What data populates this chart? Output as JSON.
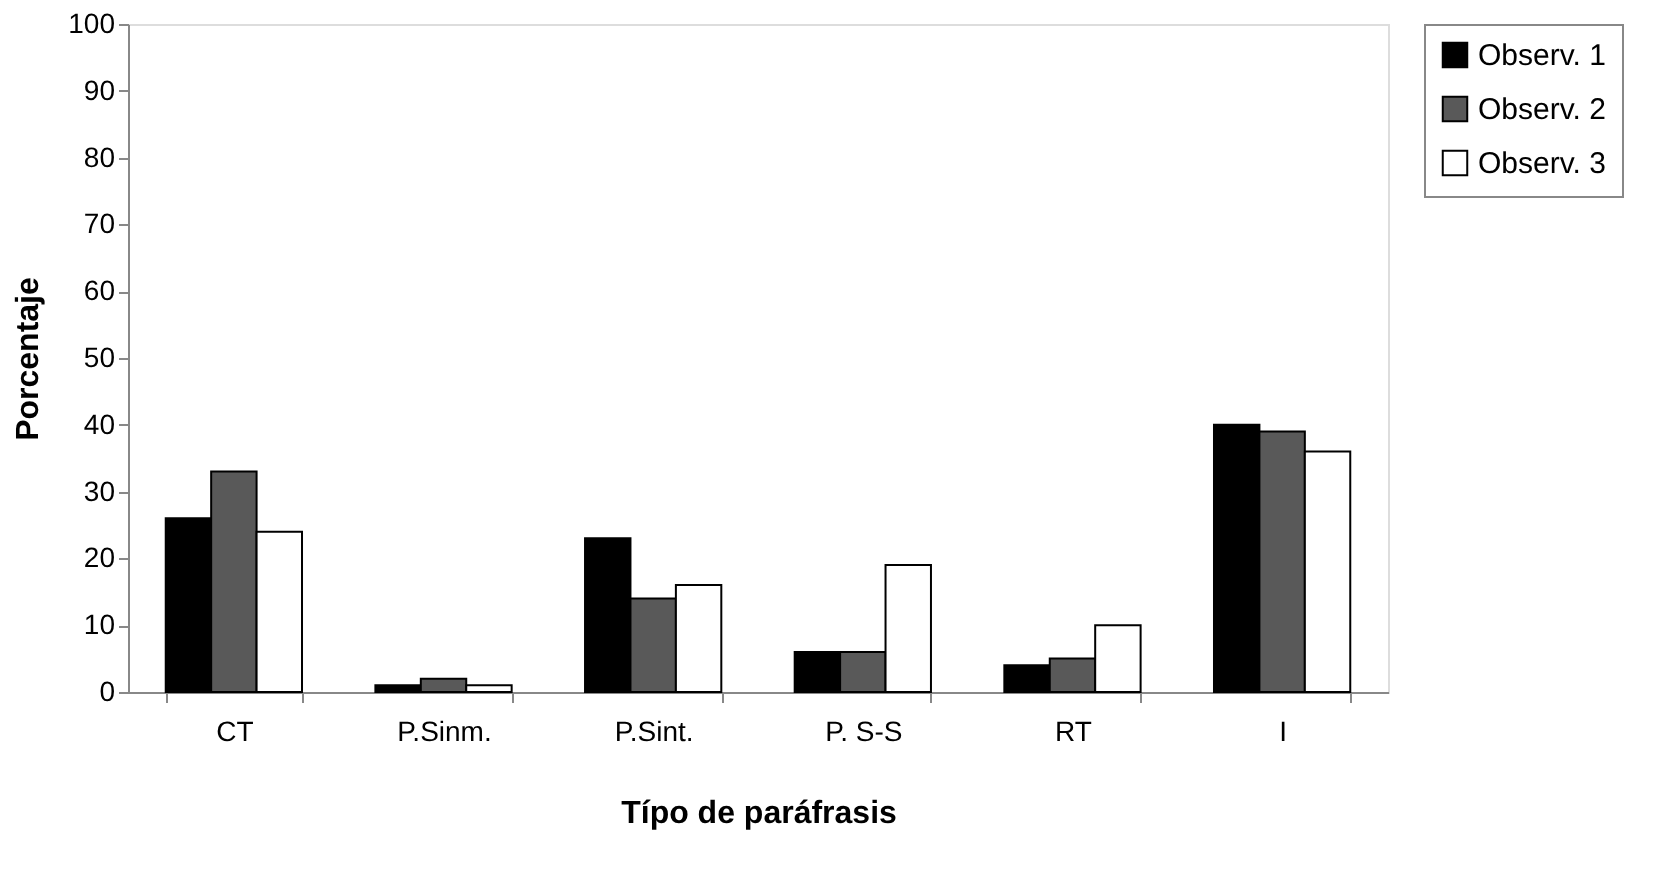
{
  "chart_data": {
    "type": "bar",
    "xlabel": "Típo de paráfrasis",
    "ylabel": "Porcentaje",
    "categories": [
      "CT",
      "P.Sinm.",
      "P.Sint.",
      "P. S-S",
      "RT",
      "I"
    ],
    "series": [
      {
        "name": "Observ. 1",
        "color": "#000000",
        "values": [
          26,
          1,
          23,
          6,
          4,
          40
        ]
      },
      {
        "name": "Observ. 2",
        "color": "#595959",
        "values": [
          33,
          2,
          14,
          6,
          5,
          39
        ]
      },
      {
        "name": "Observ. 3",
        "color": "#ffffff",
        "values": [
          24,
          1,
          16,
          19,
          10,
          36
        ]
      }
    ],
    "ylim": [
      0,
      100
    ],
    "yticks": [
      0,
      10,
      20,
      30,
      40,
      50,
      60,
      70,
      80,
      90,
      100
    ],
    "grid": false,
    "legend": "right"
  }
}
